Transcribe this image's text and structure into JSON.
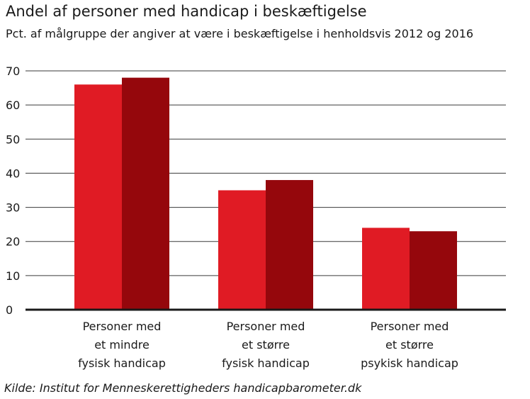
{
  "chart_data": {
    "type": "bar",
    "title": "Andel af personer med handicap i beskæftigelse",
    "subtitle": "Pct. af målgruppe der angiver at være i beskæftigelse i henholdsvis 2012 og 2016",
    "source": "Kilde: Institut for Menneskerettigheders handicapbarometer.dk",
    "categories": [
      [
        "Personer med",
        "et mindre",
        "fysisk handicap"
      ],
      [
        "Personer med",
        "et større",
        "fysisk handicap"
      ],
      [
        "Personer med",
        "et større",
        "psykisk handicap"
      ]
    ],
    "series": [
      {
        "values": [
          66,
          35,
          24
        ],
        "color": "#e01b24"
      },
      {
        "values": [
          68,
          38,
          23
        ],
        "color": "#95070c"
      }
    ],
    "ylim": [
      0,
      70
    ],
    "yticks": [
      0,
      10,
      20,
      30,
      40,
      50,
      60,
      70
    ],
    "grid": true,
    "legend": "none"
  }
}
